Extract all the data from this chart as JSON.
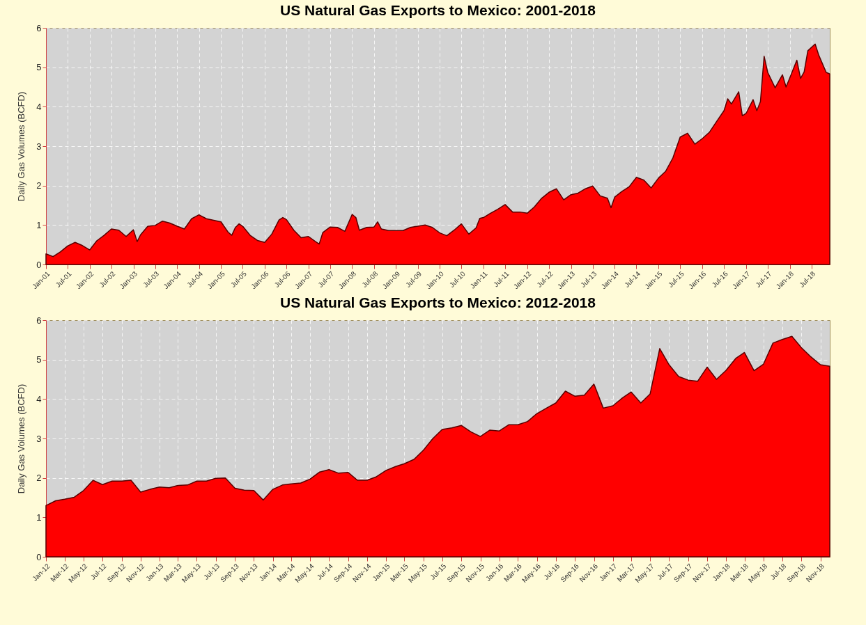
{
  "chart_data": [
    {
      "type": "area",
      "title": "US Natural Gas Exports to Mexico: 2001-2018",
      "ylabel": "Daily Gas Volumes (BCFD)",
      "color": "#ff0000",
      "grid": true,
      "marker": "none",
      "x": [
        "2001-01",
        "2001-03",
        "2001-05",
        "2001-07",
        "2001-09",
        "2001-11",
        "2002-01",
        "2002-03",
        "2002-05",
        "2002-07",
        "2002-09",
        "2002-11",
        "2003-01",
        "2003-02",
        "2003-03",
        "2003-05",
        "2003-07",
        "2003-09",
        "2003-11",
        "2004-01",
        "2004-03",
        "2004-05",
        "2004-07",
        "2004-09",
        "2004-11",
        "2005-01",
        "2005-03",
        "2005-04",
        "2005-05",
        "2005-06",
        "2005-07",
        "2005-09",
        "2005-11",
        "2006-01",
        "2006-03",
        "2006-05",
        "2006-06",
        "2006-07",
        "2006-09",
        "2006-11",
        "2007-01",
        "2007-03",
        "2007-04",
        "2007-05",
        "2007-07",
        "2007-09",
        "2007-11",
        "2008-01",
        "2008-02",
        "2008-03",
        "2008-05",
        "2008-07",
        "2008-08",
        "2008-09",
        "2008-11",
        "2009-01",
        "2009-03",
        "2009-05",
        "2009-07",
        "2009-09",
        "2009-11",
        "2010-01",
        "2010-03",
        "2010-05",
        "2010-07",
        "2010-09",
        "2010-11",
        "2010-12",
        "2011-01",
        "2011-03",
        "2011-05",
        "2011-07",
        "2011-09",
        "2011-11",
        "2012-01",
        "2012-03",
        "2012-05",
        "2012-07",
        "2012-09",
        "2012-11",
        "2013-01",
        "2013-03",
        "2013-05",
        "2013-07",
        "2013-09",
        "2013-11",
        "2013-12",
        "2014-01",
        "2014-03",
        "2014-05",
        "2014-07",
        "2014-09",
        "2014-11",
        "2015-01",
        "2015-03",
        "2015-05",
        "2015-07",
        "2015-09",
        "2015-11",
        "2016-01",
        "2016-03",
        "2016-05",
        "2016-07",
        "2016-08",
        "2016-09",
        "2016-11",
        "2016-12",
        "2017-01",
        "2017-03",
        "2017-04",
        "2017-05",
        "2017-06",
        "2017-07",
        "2017-09",
        "2017-11",
        "2017-12",
        "2018-01",
        "2018-03",
        "2018-04",
        "2018-05",
        "2018-06",
        "2018-08",
        "2018-09",
        "2018-11",
        "2018-12"
      ],
      "values": [
        0.27,
        0.2,
        0.32,
        0.47,
        0.56,
        0.48,
        0.37,
        0.6,
        0.74,
        0.9,
        0.87,
        0.71,
        0.88,
        0.58,
        0.75,
        0.97,
        0.99,
        1.1,
        1.05,
        0.97,
        0.9,
        1.16,
        1.26,
        1.16,
        1.12,
        1.08,
        0.82,
        0.74,
        0.94,
        1.03,
        0.97,
        0.74,
        0.61,
        0.56,
        0.77,
        1.13,
        1.19,
        1.14,
        0.87,
        0.68,
        0.71,
        0.58,
        0.52,
        0.81,
        0.95,
        0.94,
        0.84,
        1.27,
        1.19,
        0.87,
        0.94,
        0.95,
        1.08,
        0.9,
        0.86,
        0.86,
        0.86,
        0.94,
        0.97,
        1.0,
        0.94,
        0.8,
        0.73,
        0.87,
        1.03,
        0.77,
        0.93,
        1.17,
        1.19,
        1.3,
        1.4,
        1.52,
        1.33,
        1.33,
        1.3,
        1.46,
        1.68,
        1.83,
        1.92,
        1.64,
        1.77,
        1.81,
        1.92,
        1.99,
        1.74,
        1.68,
        1.44,
        1.71,
        1.85,
        1.97,
        2.21,
        2.14,
        1.94,
        2.19,
        2.36,
        2.7,
        3.23,
        3.33,
        3.05,
        3.19,
        3.35,
        3.63,
        3.9,
        4.2,
        4.07,
        4.38,
        3.77,
        3.83,
        4.18,
        3.9,
        4.13,
        5.28,
        4.87,
        4.48,
        4.81,
        4.5,
        4.73,
        5.18,
        4.72,
        4.88,
        5.42,
        5.59,
        5.3,
        4.87,
        4.83
      ],
      "xlim": [
        "2001-01",
        "2018-12"
      ],
      "xticks": [
        {
          "value": "2001-01",
          "label": "Jan-01"
        },
        {
          "value": "2001-07",
          "label": "Jul-01"
        },
        {
          "value": "2002-01",
          "label": "Jan-02"
        },
        {
          "value": "2002-07",
          "label": "Jul-02"
        },
        {
          "value": "2003-01",
          "label": "Jan-03"
        },
        {
          "value": "2003-07",
          "label": "Jul-03"
        },
        {
          "value": "2004-01",
          "label": "Jan-04"
        },
        {
          "value": "2004-07",
          "label": "Jul-04"
        },
        {
          "value": "2005-01",
          "label": "Jan-05"
        },
        {
          "value": "2005-07",
          "label": "Jul-05"
        },
        {
          "value": "2006-01",
          "label": "Jan-06"
        },
        {
          "value": "2006-07",
          "label": "Jul-06"
        },
        {
          "value": "2007-01",
          "label": "Jan-07"
        },
        {
          "value": "2007-07",
          "label": "Jul-07"
        },
        {
          "value": "2008-01",
          "label": "Jan-08"
        },
        {
          "value": "2008-07",
          "label": "Jul-08"
        },
        {
          "value": "2009-01",
          "label": "Jan-09"
        },
        {
          "value": "2009-07",
          "label": "Jul-09"
        },
        {
          "value": "2010-01",
          "label": "Jan-10"
        },
        {
          "value": "2010-07",
          "label": "Jul-10"
        },
        {
          "value": "2011-01",
          "label": "Jan-11"
        },
        {
          "value": "2011-07",
          "label": "Jul-11"
        },
        {
          "value": "2012-01",
          "label": "Jan-12"
        },
        {
          "value": "2012-07",
          "label": "Jul-12"
        },
        {
          "value": "2013-01",
          "label": "Jan-13"
        },
        {
          "value": "2013-07",
          "label": "Jul-13"
        },
        {
          "value": "2014-01",
          "label": "Jan-14"
        },
        {
          "value": "2014-07",
          "label": "Jul-14"
        },
        {
          "value": "2015-01",
          "label": "Jan-15"
        },
        {
          "value": "2015-07",
          "label": "Jul-15"
        },
        {
          "value": "2016-01",
          "label": "Jan-16"
        },
        {
          "value": "2016-07",
          "label": "Jul-16"
        },
        {
          "value": "2017-01",
          "label": "Jan-17"
        },
        {
          "value": "2017-07",
          "label": "Jul-17"
        },
        {
          "value": "2018-01",
          "label": "Jan-18"
        },
        {
          "value": "2018-07",
          "label": "Jul-18"
        }
      ],
      "ylim": [
        0,
        6
      ],
      "yticks": [
        0,
        1,
        2,
        3,
        4,
        5,
        6
      ]
    },
    {
      "type": "area",
      "title": "US Natural Gas Exports to Mexico: 2012-2018",
      "ylabel": "Daily Gas Volumes (BCFD)",
      "color": "#ff0000",
      "grid": true,
      "marker": "none",
      "x": [
        "2012-01",
        "2012-02",
        "2012-03",
        "2012-04",
        "2012-05",
        "2012-06",
        "2012-07",
        "2012-08",
        "2012-09",
        "2012-10",
        "2012-11",
        "2012-12",
        "2013-01",
        "2013-02",
        "2013-03",
        "2013-04",
        "2013-05",
        "2013-06",
        "2013-07",
        "2013-08",
        "2013-09",
        "2013-10",
        "2013-11",
        "2013-12",
        "2014-01",
        "2014-02",
        "2014-03",
        "2014-04",
        "2014-05",
        "2014-06",
        "2014-07",
        "2014-08",
        "2014-09",
        "2014-10",
        "2014-11",
        "2014-12",
        "2015-01",
        "2015-02",
        "2015-03",
        "2015-04",
        "2015-05",
        "2015-06",
        "2015-07",
        "2015-08",
        "2015-09",
        "2015-10",
        "2015-11",
        "2015-12",
        "2016-01",
        "2016-02",
        "2016-03",
        "2016-04",
        "2016-05",
        "2016-06",
        "2016-07",
        "2016-08",
        "2016-09",
        "2016-10",
        "2016-11",
        "2016-12",
        "2017-01",
        "2017-02",
        "2017-03",
        "2017-04",
        "2017-05",
        "2017-06",
        "2017-07",
        "2017-08",
        "2017-09",
        "2017-10",
        "2017-11",
        "2017-12",
        "2018-01",
        "2018-02",
        "2018-03",
        "2018-04",
        "2018-05",
        "2018-06",
        "2018-07",
        "2018-08",
        "2018-09",
        "2018-10",
        "2018-11",
        "2018-12"
      ],
      "values": [
        1.3,
        1.42,
        1.46,
        1.51,
        1.68,
        1.94,
        1.83,
        1.92,
        1.92,
        1.94,
        1.64,
        1.71,
        1.77,
        1.75,
        1.81,
        1.82,
        1.92,
        1.92,
        1.99,
        2.0,
        1.74,
        1.69,
        1.68,
        1.44,
        1.71,
        1.82,
        1.85,
        1.87,
        1.97,
        2.15,
        2.21,
        2.12,
        2.14,
        1.94,
        1.94,
        2.03,
        2.19,
        2.29,
        2.36,
        2.47,
        2.7,
        3.0,
        3.23,
        3.27,
        3.33,
        3.17,
        3.05,
        3.21,
        3.19,
        3.35,
        3.35,
        3.43,
        3.63,
        3.77,
        3.9,
        4.2,
        4.07,
        4.1,
        4.38,
        3.77,
        3.83,
        4.03,
        4.18,
        3.9,
        4.13,
        5.28,
        4.87,
        4.57,
        4.48,
        4.45,
        4.81,
        4.5,
        4.73,
        5.03,
        5.18,
        4.72,
        4.88,
        5.42,
        5.51,
        5.59,
        5.3,
        5.07,
        4.87,
        4.83
      ],
      "xlim": [
        "2012-01",
        "2018-12"
      ],
      "xticks": [
        {
          "value": "2012-01",
          "label": "Jan-12"
        },
        {
          "value": "2012-03",
          "label": "Mar-12"
        },
        {
          "value": "2012-05",
          "label": "May-12"
        },
        {
          "value": "2012-07",
          "label": "Jul-12"
        },
        {
          "value": "2012-09",
          "label": "Sep-12"
        },
        {
          "value": "2012-11",
          "label": "Nov-12"
        },
        {
          "value": "2013-01",
          "label": "Jan-13"
        },
        {
          "value": "2013-03",
          "label": "Mar-13"
        },
        {
          "value": "2013-05",
          "label": "May-13"
        },
        {
          "value": "2013-07",
          "label": "Jul-13"
        },
        {
          "value": "2013-09",
          "label": "Sep-13"
        },
        {
          "value": "2013-11",
          "label": "Nov-13"
        },
        {
          "value": "2014-01",
          "label": "Jan-14"
        },
        {
          "value": "2014-03",
          "label": "Mar-14"
        },
        {
          "value": "2014-05",
          "label": "May-14"
        },
        {
          "value": "2014-07",
          "label": "Jul-14"
        },
        {
          "value": "2014-09",
          "label": "Sep-14"
        },
        {
          "value": "2014-11",
          "label": "Nov-14"
        },
        {
          "value": "2015-01",
          "label": "Jan-15"
        },
        {
          "value": "2015-03",
          "label": "Mar-15"
        },
        {
          "value": "2015-05",
          "label": "May-15"
        },
        {
          "value": "2015-07",
          "label": "Jul-15"
        },
        {
          "value": "2015-09",
          "label": "Sep-15"
        },
        {
          "value": "2015-11",
          "label": "Nov-15"
        },
        {
          "value": "2016-01",
          "label": "Jan-16"
        },
        {
          "value": "2016-03",
          "label": "Mar-16"
        },
        {
          "value": "2016-05",
          "label": "May-16"
        },
        {
          "value": "2016-07",
          "label": "Jul-16"
        },
        {
          "value": "2016-09",
          "label": "Sep-16"
        },
        {
          "value": "2016-11",
          "label": "Nov-16"
        },
        {
          "value": "2017-01",
          "label": "Jan-17"
        },
        {
          "value": "2017-03",
          "label": "Mar-17"
        },
        {
          "value": "2017-05",
          "label": "May-17"
        },
        {
          "value": "2017-07",
          "label": "Jul-17"
        },
        {
          "value": "2017-09",
          "label": "Sep-17"
        },
        {
          "value": "2017-11",
          "label": "Nov-17"
        },
        {
          "value": "2018-01",
          "label": "Jan-18"
        },
        {
          "value": "2018-03",
          "label": "Mar-18"
        },
        {
          "value": "2018-05",
          "label": "May-18"
        },
        {
          "value": "2018-07",
          "label": "Jul-18"
        },
        {
          "value": "2018-09",
          "label": "Sep-18"
        },
        {
          "value": "2018-11",
          "label": "Nov-18"
        }
      ],
      "ylim": [
        0,
        6
      ],
      "yticks": [
        0,
        1,
        2,
        3,
        4,
        5,
        6
      ]
    }
  ]
}
